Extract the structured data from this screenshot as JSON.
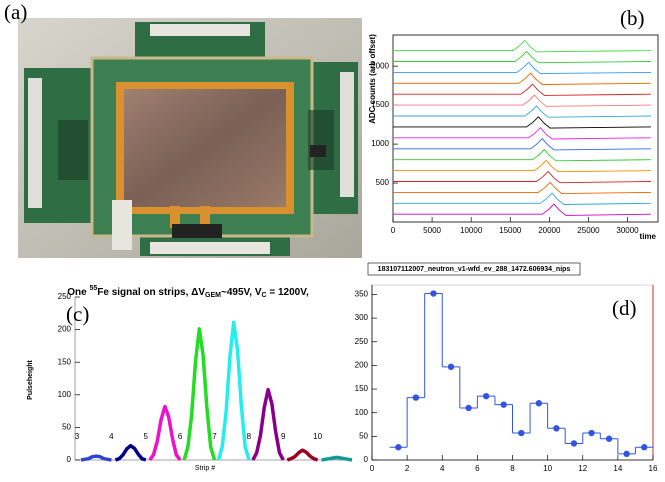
{
  "panel_labels": [
    "(a)",
    "(b)",
    "(c)",
    "(d)"
  ],
  "chart_data": [
    {
      "type": "line",
      "xlabel": "time",
      "ylabel": "ADC counts (arb offset)",
      "xlim": [
        0,
        33900
      ],
      "xticks": [
        0,
        5000,
        10000,
        15000,
        20000,
        25000,
        30000
      ],
      "ylim": [
        0,
        2400
      ],
      "yticks": [
        500,
        1000,
        1500,
        2000
      ],
      "series": [
        {
          "color": "#cc00cc",
          "x": [
            0,
            19100,
            19900,
            20600,
            21300,
            22100,
            33000
          ],
          "values": [
            100,
            100,
            160,
            230,
            150,
            85,
            100
          ]
        },
        {
          "color": "#33aacc",
          "x": [
            0,
            18850,
            19650,
            20350,
            21050,
            21850,
            33000
          ],
          "values": [
            240,
            240,
            300,
            370,
            290,
            225,
            240
          ]
        },
        {
          "color": "#ee6600",
          "x": [
            0,
            18600,
            19400,
            20100,
            20800,
            21600,
            33000
          ],
          "values": [
            380,
            380,
            440,
            510,
            430,
            365,
            380
          ]
        },
        {
          "color": "#dd2222",
          "x": [
            0,
            18350,
            19150,
            19850,
            20550,
            21350,
            33000
          ],
          "values": [
            520,
            520,
            580,
            650,
            570,
            505,
            520
          ]
        },
        {
          "color": "#ff8800",
          "x": [
            0,
            18100,
            18900,
            19600,
            20300,
            21100,
            33000
          ],
          "values": [
            660,
            660,
            720,
            790,
            710,
            645,
            660
          ]
        },
        {
          "color": "#33cc33",
          "x": [
            0,
            17850,
            18650,
            19350,
            20050,
            20850,
            33000
          ],
          "values": [
            800,
            800,
            860,
            930,
            850,
            785,
            800
          ]
        },
        {
          "color": "#3366ff",
          "x": [
            0,
            17600,
            18400,
            19100,
            19800,
            20600,
            33000
          ],
          "values": [
            940,
            940,
            1000,
            1070,
            990,
            925,
            940
          ]
        },
        {
          "color": "#ee22ee",
          "x": [
            0,
            17350,
            18150,
            18850,
            19550,
            20350,
            33000
          ],
          "values": [
            1080,
            1080,
            1140,
            1210,
            1130,
            1065,
            1080
          ]
        },
        {
          "color": "#000000",
          "x": [
            0,
            17100,
            17900,
            18600,
            19300,
            20100,
            33000
          ],
          "values": [
            1220,
            1220,
            1280,
            1350,
            1270,
            1205,
            1220
          ]
        },
        {
          "color": "#33aacc",
          "x": [
            0,
            16850,
            17650,
            18350,
            19050,
            19850,
            33000
          ],
          "values": [
            1360,
            1360,
            1420,
            1490,
            1410,
            1345,
            1360
          ]
        },
        {
          "color": "#ff7777",
          "x": [
            0,
            16600,
            17400,
            18100,
            18800,
            19600,
            33000
          ],
          "values": [
            1500,
            1500,
            1560,
            1630,
            1550,
            1485,
            1500
          ]
        },
        {
          "color": "#dd2222",
          "x": [
            0,
            16350,
            17150,
            17850,
            18550,
            19350,
            33000
          ],
          "values": [
            1640,
            1640,
            1700,
            1770,
            1690,
            1625,
            1640
          ]
        },
        {
          "color": "#ee6600",
          "x": [
            0,
            16100,
            16900,
            17600,
            18300,
            19100,
            33000
          ],
          "values": [
            1780,
            1780,
            1840,
            1910,
            1830,
            1765,
            1780
          ]
        },
        {
          "color": "#3399ff",
          "x": [
            0,
            15850,
            16650,
            17350,
            18050,
            18850,
            33000
          ],
          "values": [
            1920,
            1920,
            1980,
            2050,
            1970,
            1905,
            1920
          ]
        },
        {
          "color": "#33cc33",
          "x": [
            0,
            15600,
            16400,
            17100,
            17800,
            18600,
            33000
          ],
          "values": [
            2060,
            2060,
            2120,
            2190,
            2110,
            2045,
            2060
          ]
        },
        {
          "color": "#44dd44",
          "x": [
            0,
            15350,
            16150,
            16850,
            17550,
            18350,
            33000
          ],
          "values": [
            2200,
            2200,
            2260,
            2330,
            2250,
            2185,
            2200
          ]
        }
      ]
    },
    {
      "type": "line",
      "title": [
        "One ",
        "55",
        "Fe signal on strips, ΔV",
        "GEM",
        "~495V, V",
        "C",
        " = 1200V,"
      ],
      "xlabel": "Strip #",
      "ylabel": "Pulseheight",
      "ylim": [
        0,
        250
      ],
      "yticks": [
        0,
        50,
        100,
        150,
        200,
        250
      ],
      "series": [
        {
          "name": "3",
          "color": "#3344cc",
          "values": [
            0,
            1,
            2,
            5,
            6,
            5,
            2,
            1,
            0
          ]
        },
        {
          "name": "4",
          "color": "#000088",
          "values": [
            0,
            2,
            8,
            17,
            22,
            18,
            9,
            2,
            0
          ]
        },
        {
          "name": "5",
          "color": "#ee11cc",
          "values": [
            0,
            8,
            29,
            62,
            82,
            66,
            33,
            8,
            0
          ]
        },
        {
          "name": "6",
          "color": "#22dd22",
          "values": [
            0,
            20,
            70,
            151,
            201,
            161,
            80,
            20,
            0
          ]
        },
        {
          "name": "7",
          "color": "#22eeee",
          "values": [
            0,
            21,
            74,
            158,
            211,
            169,
            84,
            21,
            0
          ]
        },
        {
          "name": "8",
          "color": "#880088",
          "values": [
            0,
            11,
            38,
            81,
            108,
            86,
            43,
            11,
            0
          ]
        },
        {
          "name": "9",
          "color": "#990022",
          "values": [
            0,
            2,
            5,
            11,
            15,
            12,
            6,
            2,
            0
          ]
        },
        {
          "name": "10",
          "color": "#119999",
          "values": [
            0,
            1,
            2,
            3,
            4,
            3,
            2,
            1,
            0
          ]
        }
      ]
    },
    {
      "type": "histogram",
      "title": "183107112007_neutron_v1-wfd_ev_288_1472.606934_nips",
      "color": "#3355dd",
      "marker": "circle",
      "bins": [
        1,
        2,
        3,
        4,
        5,
        6,
        7,
        8,
        9,
        10,
        11,
        12,
        13,
        14,
        15,
        16
      ],
      "values": [
        27,
        132,
        352,
        197,
        110,
        135,
        117,
        57,
        120,
        67,
        35,
        57,
        45,
        13,
        27
      ],
      "xlim": [
        0,
        16
      ],
      "xticks": [
        0,
        2,
        4,
        6,
        8,
        10,
        12,
        14,
        16
      ],
      "ylim": [
        0,
        370
      ],
      "yticks": [
        0,
        50,
        100,
        150,
        200,
        250,
        300,
        350
      ]
    }
  ]
}
